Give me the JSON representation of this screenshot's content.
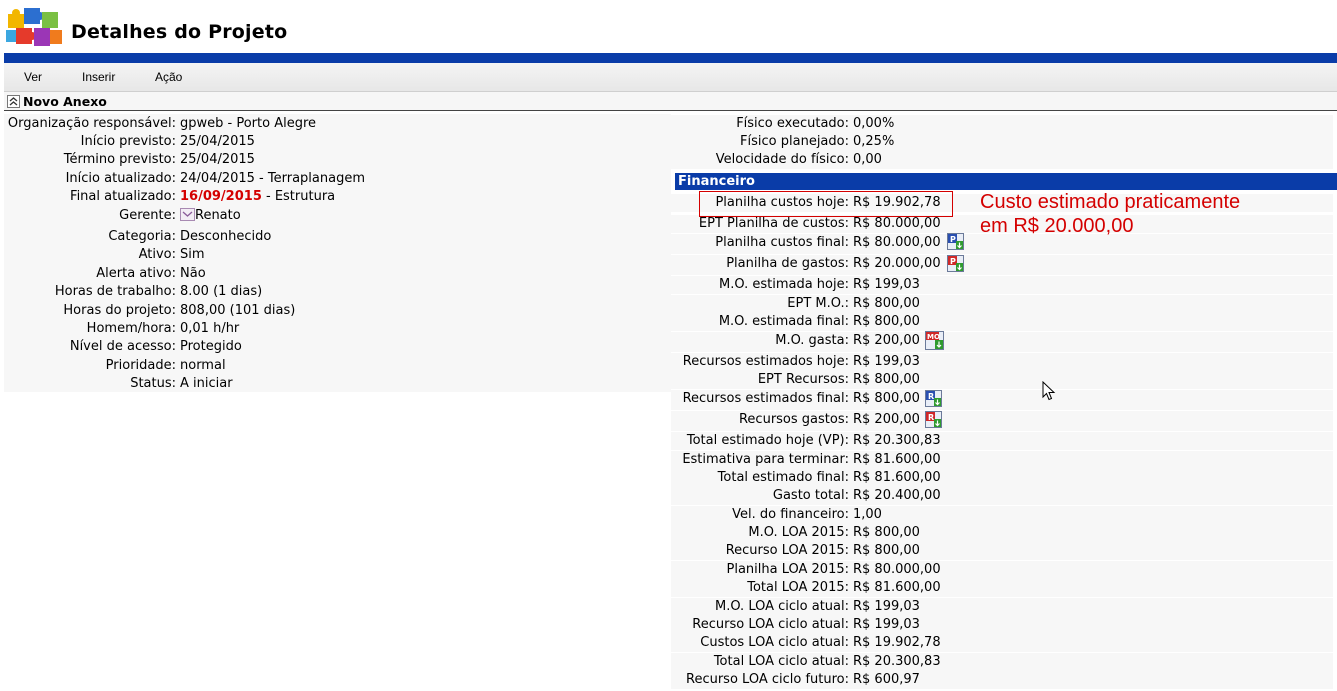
{
  "header": {
    "title": "Detalhes do Projeto"
  },
  "menu": [
    "Ver",
    "Inserir",
    "Ação"
  ],
  "section": {
    "title": "Novo Anexo"
  },
  "left_fields": [
    {
      "label": "Organização responsável:",
      "value": "gpweb - Porto Alegre"
    },
    {
      "label": "Início previsto:",
      "value": "25/04/2015"
    },
    {
      "label": "Término previsto:",
      "value": "25/04/2015"
    },
    {
      "label": "Início atualizado:",
      "value": "24/04/2015 - Terraplanagem"
    },
    {
      "label": "Final atualizado:",
      "value_red": "16/09/2015",
      "value": " - Estrutura"
    },
    {
      "label": "Gerente:",
      "value": "Renato"
    },
    {
      "label": "Categoria:",
      "value": "Desconhecido"
    },
    {
      "label": "Ativo:",
      "value": "Sim"
    },
    {
      "label": "Alerta ativo:",
      "value": "Não"
    },
    {
      "label": "Horas de trabalho:",
      "value": "8.00 (1 dias)"
    },
    {
      "label": "Horas do projeto:",
      "value": "808,00 (101 dias)"
    },
    {
      "label": "Homem/hora:",
      "value": "0,01 h/hr"
    },
    {
      "label": "Nível de acesso:",
      "value": "Protegido"
    },
    {
      "label": "Prioridade:",
      "value": "normal"
    },
    {
      "label": "Status:",
      "value": "A iniciar"
    }
  ],
  "physical_fields": [
    {
      "label": "Físico executado:",
      "value": "0,00%"
    },
    {
      "label": "Físico planejado:",
      "value": "0,25%"
    },
    {
      "label": "Velocidade do físico:",
      "value": "0,00"
    }
  ],
  "financial": {
    "title": "Financeiro",
    "fields": [
      {
        "label": "Planilha custos hoje:",
        "value": "R$ 19.902,78"
      },
      {
        "label": "EPT Planilha de custos:",
        "value": "R$ 80.000,00"
      },
      {
        "label": "Planilha custos final:",
        "value": "R$ 80.000,00",
        "icon": "P"
      },
      {
        "label": "Planilha de gastos:",
        "value": "R$ 20.000,00",
        "icon": "P"
      },
      {
        "label": "M.O. estimada hoje:",
        "value": "R$ 199,03"
      },
      {
        "label": "EPT M.O.:",
        "value": "R$ 800,00"
      },
      {
        "label": "M.O. estimada final:",
        "value": "R$ 800,00"
      },
      {
        "label": "M.O. gasta:",
        "value": "R$ 200,00",
        "icon": "MO"
      },
      {
        "label": "Recursos estimados hoje:",
        "value": "R$ 199,03"
      },
      {
        "label": "EPT Recursos:",
        "value": "R$ 800,00"
      },
      {
        "label": "Recursos estimados final:",
        "value": "R$ 800,00",
        "icon": "R"
      },
      {
        "label": "Recursos gastos:",
        "value": "R$ 200,00",
        "icon": "R"
      },
      {
        "label": "Total estimado hoje (VP):",
        "value": "R$ 20.300,83"
      },
      {
        "label": "Estimativa para terminar:",
        "value": "R$ 81.600,00"
      },
      {
        "label": "Total estimado final:",
        "value": "R$ 81.600,00"
      },
      {
        "label": "Gasto total:",
        "value": "R$ 20.400,00"
      },
      {
        "label": "Vel. do financeiro:",
        "value": "1,00"
      },
      {
        "label": "M.O. LOA 2015:",
        "value": "R$ 800,00"
      },
      {
        "label": "Recurso LOA 2015:",
        "value": "R$ 800,00"
      },
      {
        "label": "Planilha LOA 2015:",
        "value": "R$ 80.000,00"
      },
      {
        "label": "Total LOA 2015:",
        "value": "R$ 81.600,00"
      },
      {
        "label": "M.O. LOA ciclo atual:",
        "value": "R$ 199,03"
      },
      {
        "label": "Recurso LOA ciclo atual:",
        "value": "R$ 199,03"
      },
      {
        "label": "Custos LOA ciclo atual:",
        "value": "R$ 19.902,78"
      },
      {
        "label": "Total LOA ciclo atual:",
        "value": "R$ 20.300,83"
      },
      {
        "label": "Recurso LOA ciclo futuro:",
        "value": "R$ 600,97"
      }
    ]
  },
  "annotation": {
    "line1": "Custo estimado praticamente",
    "line2": "em R$ 20.000,00"
  },
  "colors": {
    "accent_blue": "#0a3ca8",
    "highlight_red": "#d40000"
  }
}
